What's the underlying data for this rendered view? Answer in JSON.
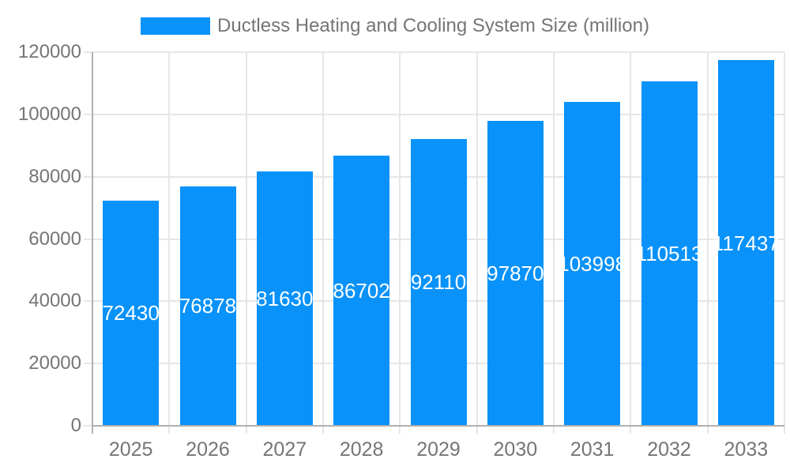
{
  "chart_data": {
    "type": "bar",
    "title": "Ductless Heating and Cooling System Size (million)",
    "legend_entries": [
      "Ductless Heating and Cooling System Size (million)"
    ],
    "legend_position": "top",
    "categories": [
      "2025",
      "2026",
      "2027",
      "2028",
      "2029",
      "2030",
      "2031",
      "2032",
      "2033"
    ],
    "values": [
      72430,
      76878,
      81630,
      86702,
      92110,
      97870,
      103998,
      110513,
      117437
    ],
    "xlabel": "",
    "ylabel": "",
    "ylim": [
      0,
      120000
    ],
    "yticks": [
      0,
      20000,
      40000,
      60000,
      80000,
      100000,
      120000
    ],
    "ytick_labels": [
      "0",
      "20000",
      "40000",
      "60000",
      "80000",
      "100000",
      "120000"
    ],
    "grid": true,
    "colors": {
      "bar": "#0892fa",
      "axis_line": "#b0b0b0",
      "gridline": "#e6e6e6",
      "tick_text": "#757575",
      "value_label": "#ffffff",
      "background": "#ffffff"
    }
  }
}
